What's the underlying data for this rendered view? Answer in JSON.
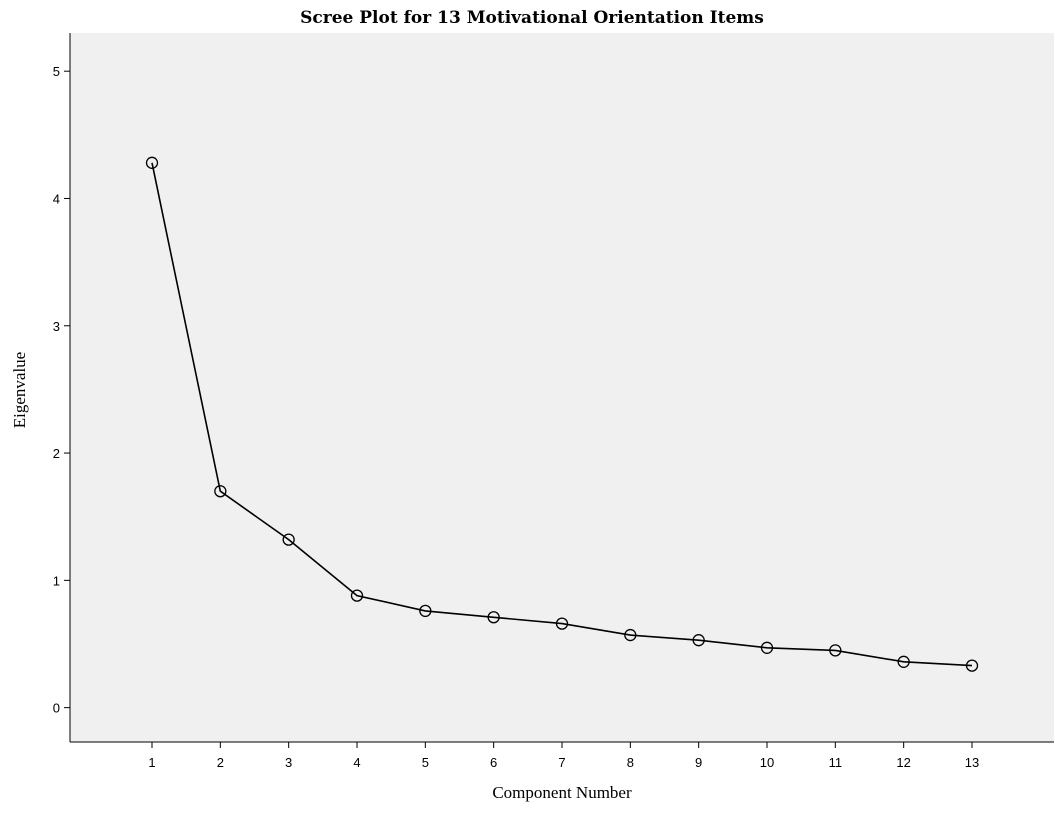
{
  "chart_data": {
    "type": "line",
    "title": "Scree Plot for 13 Motivational Orientation Items",
    "xlabel": "Component Number",
    "ylabel": "Eigenvalue",
    "x": [
      1,
      2,
      3,
      4,
      5,
      6,
      7,
      8,
      9,
      10,
      11,
      12,
      13
    ],
    "values": [
      4.28,
      1.7,
      1.32,
      0.88,
      0.76,
      0.71,
      0.66,
      0.57,
      0.53,
      0.47,
      0.45,
      0.36,
      0.33
    ],
    "xticks": [
      "1",
      "2",
      "3",
      "4",
      "5",
      "6",
      "7",
      "8",
      "9",
      "10",
      "11",
      "12",
      "13"
    ],
    "yticks": [
      "0",
      "1",
      "2",
      "3",
      "4",
      "5"
    ],
    "ylim": [
      -0.27,
      5.3
    ],
    "xlim": [
      -0.2,
      14.2
    ],
    "grid": false,
    "legend": "none",
    "marker": "open-circle",
    "colors": {
      "plot_bg": "#f0f0f0",
      "line": "#000000",
      "page_bg": "#ffffff"
    }
  }
}
